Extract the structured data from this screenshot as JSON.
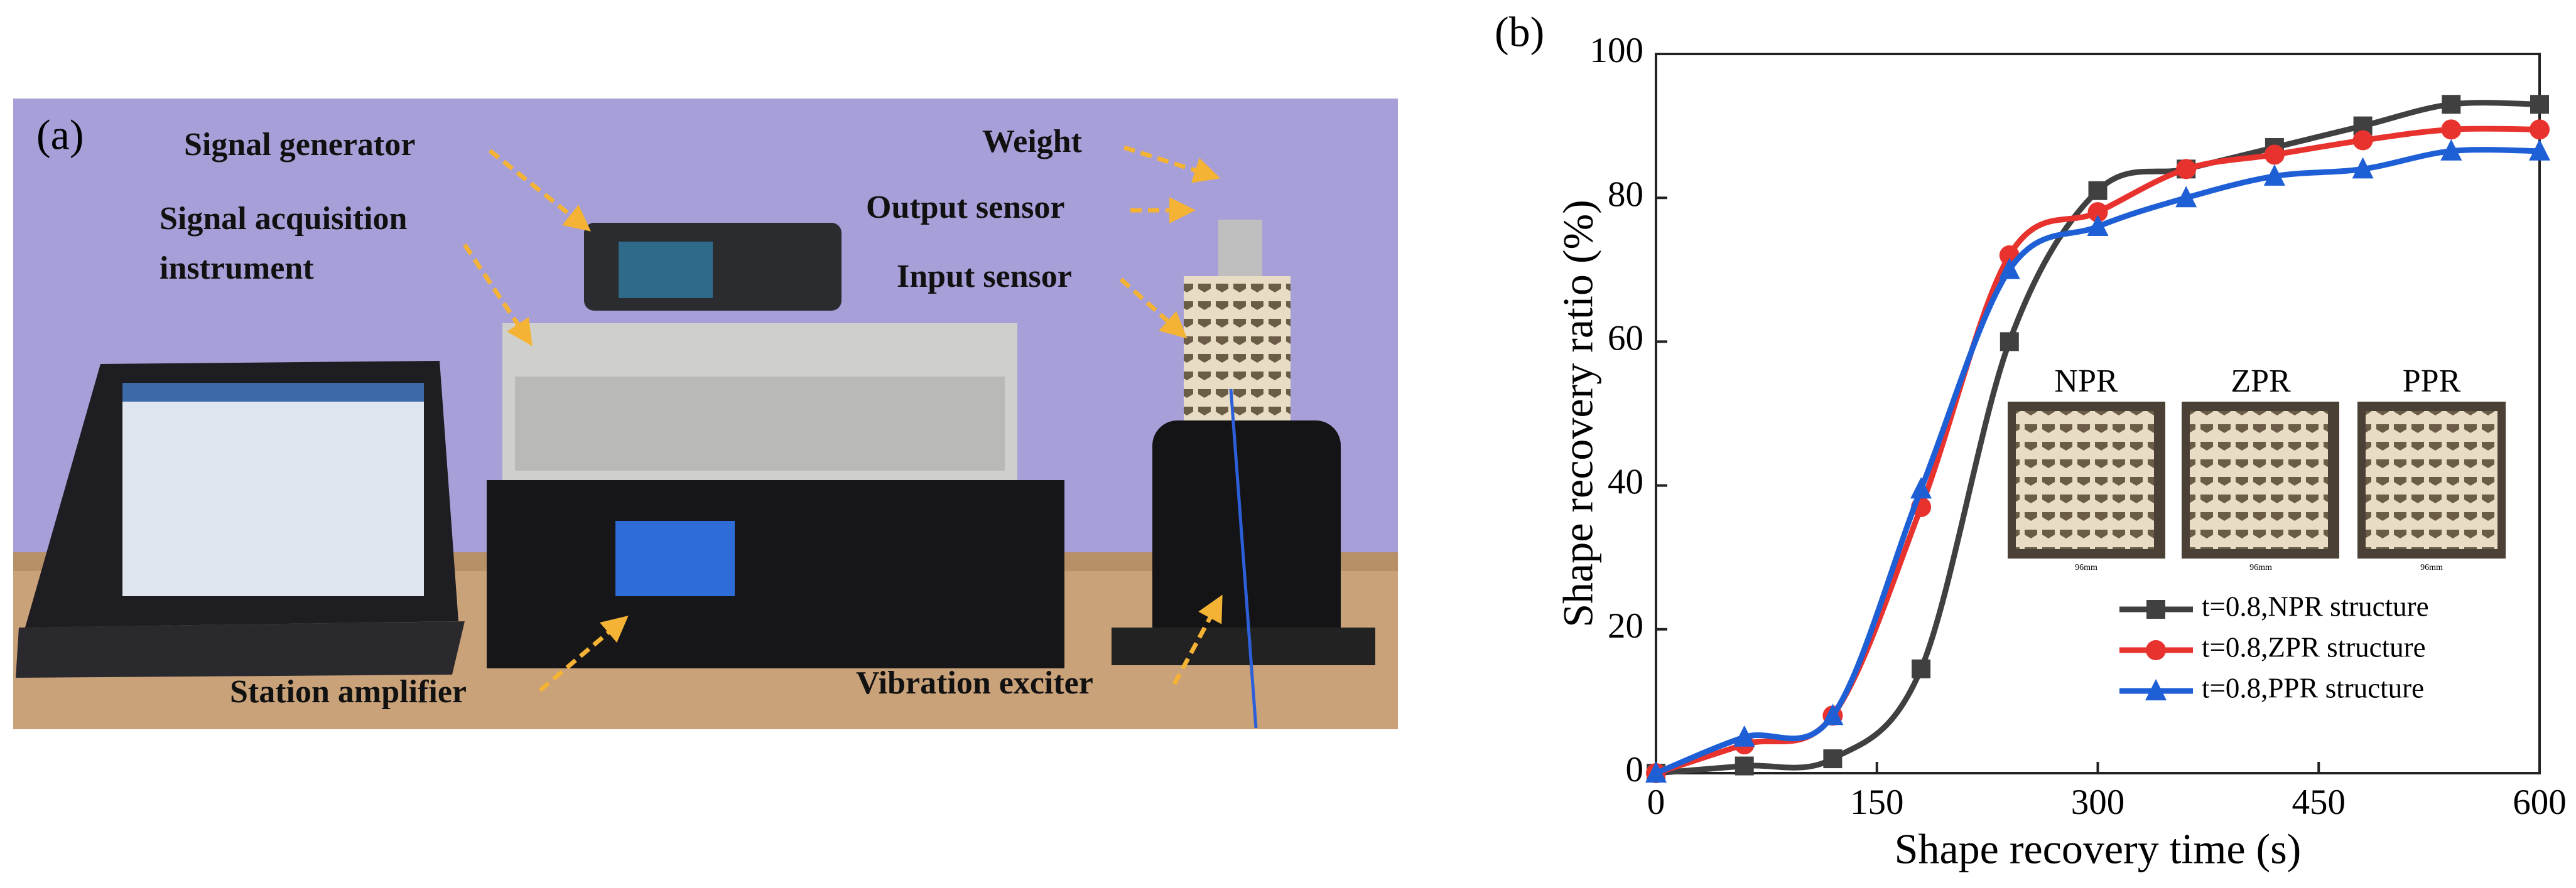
{
  "panel_a": {
    "label": "(a)",
    "annotations": {
      "signal_generator": "Signal generator",
      "acquisition_line1": "Signal acquisition",
      "acquisition_line2": "instrument",
      "weight": "Weight",
      "output_sensor": "Output sensor",
      "input_sensor": "Input sensor",
      "station_amplifier": "Station amplifier",
      "vibration_exciter": "Vibration exciter"
    }
  },
  "chart_data": {
    "type": "line",
    "panel_label": "(b)",
    "x_label": "Shape recovery time (s)",
    "y_label": "Shape recovery ratio (%)",
    "x": [
      0,
      60,
      120,
      180,
      240,
      300,
      360,
      420,
      480,
      540,
      600
    ],
    "series": [
      {
        "name": "t=0.8,NPR structure",
        "color": "#404040",
        "marker": "square",
        "values": [
          0,
          1,
          2,
          14.5,
          60,
          81,
          84,
          87,
          90,
          93,
          93
        ]
      },
      {
        "name": "t=0.8,ZPR structure",
        "color": "#e8322e",
        "marker": "circle",
        "values": [
          0,
          4,
          8,
          37,
          72,
          78,
          84,
          86,
          88,
          89.5,
          89.5
        ]
      },
      {
        "name": "t=0.8,PPR structure",
        "color": "#1f5fd6",
        "marker": "triangle",
        "values": [
          0,
          5,
          8,
          39.5,
          70,
          76,
          80,
          83,
          84,
          86.5,
          86.5
        ]
      }
    ],
    "xlim": [
      0,
      600
    ],
    "xticks": [
      0,
      150,
      300,
      450,
      600
    ],
    "ylim": [
      0,
      100
    ],
    "yticks": [
      0,
      20,
      40,
      60,
      80,
      100
    ],
    "insets": [
      {
        "label": "NPR",
        "dimension": "96mm"
      },
      {
        "label": "ZPR",
        "dimension": "96mm"
      },
      {
        "label": "PPR",
        "dimension": "96mm"
      }
    ]
  }
}
